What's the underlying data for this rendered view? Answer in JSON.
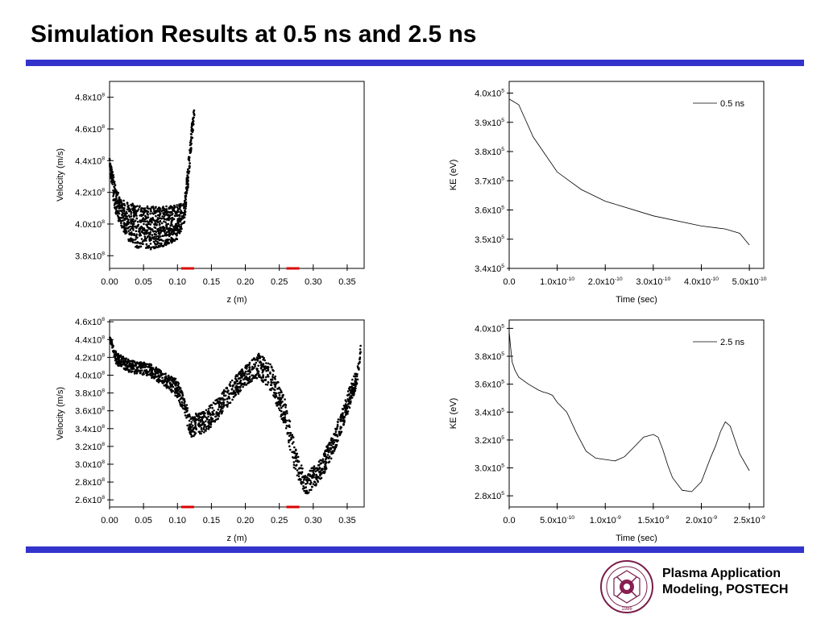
{
  "slide": {
    "title": "Simulation Results at 0.5 ns and 2.5 ns",
    "org_line1": "Plasma Application",
    "org_line2": "Modeling, POSTECH",
    "logo": {
      "icon": "university-seal-icon",
      "ring_text": "POHANG UNIVERSITY OF SCIENCE AND TECHNOLOGY",
      "year": "1986"
    },
    "accent_color": "#3333cc"
  },
  "chart_data": [
    {
      "id": "vel05",
      "type": "scatter",
      "xlabel": "z (m)",
      "ylabel": "Velocity (m/s)",
      "xlim": [
        0,
        0.375
      ],
      "ylim": [
        372000000.0,
        490000000.0
      ],
      "xticks": [
        0,
        0.05,
        0.1,
        0.15,
        0.2,
        0.25,
        0.3,
        0.35
      ],
      "xtick_labels": [
        "0.00",
        "0.05",
        "0.10",
        "0.15",
        "0.20",
        "0.25",
        "0.30",
        "0.35"
      ],
      "yticks": [
        380000000.0,
        400000000.0,
        420000000.0,
        440000000.0,
        460000000.0,
        480000000.0
      ],
      "ytick_labels": [
        [
          "3.8x10",
          "8"
        ],
        [
          "4.0x10",
          "8"
        ],
        [
          "4.2x10",
          "8"
        ],
        [
          "4.4x10",
          "8"
        ],
        [
          "4.6x10",
          "8"
        ],
        [
          "4.8x10",
          "8"
        ]
      ],
      "upper_envelope": [
        [
          0,
          445000000.0
        ],
        [
          0.005,
          432000000.0
        ],
        [
          0.01,
          422000000.0
        ],
        [
          0.02,
          415000000.0
        ],
        [
          0.04,
          412000000.0
        ],
        [
          0.06,
          411000000.0
        ],
        [
          0.08,
          411000000.0
        ],
        [
          0.1,
          412000000.0
        ],
        [
          0.11,
          414000000.0
        ],
        [
          0.115,
          435000000.0
        ],
        [
          0.12,
          460000000.0
        ],
        [
          0.125,
          475000000.0
        ]
      ],
      "lower_envelope": [
        [
          0,
          438000000.0
        ],
        [
          0.005,
          415000000.0
        ],
        [
          0.01,
          405000000.0
        ],
        [
          0.02,
          396000000.0
        ],
        [
          0.03,
          388000000.0
        ],
        [
          0.04,
          385000000.0
        ],
        [
          0.06,
          384000000.0
        ],
        [
          0.08,
          386000000.0
        ],
        [
          0.1,
          390000000.0
        ],
        [
          0.11,
          400000000.0
        ],
        [
          0.115,
          420000000.0
        ],
        [
          0.12,
          445000000.0
        ],
        [
          0.125,
          468000000.0
        ]
      ],
      "markers": [
        0.115,
        0.27
      ],
      "marker_color": "#dd0000"
    },
    {
      "id": "ke05",
      "type": "line",
      "series": [
        {
          "name": "0.5 ns",
          "x": [
            0,
            2e-11,
            5e-11,
            1e-10,
            1.5e-10,
            2e-10,
            3e-10,
            4e-10,
            4.5e-10,
            4.8e-10,
            5e-10
          ],
          "y": [
            398000.0,
            396000.0,
            385000.0,
            373000.0,
            367000.0,
            363000.0,
            358000.0,
            354500.0,
            353500.0,
            352000.0,
            348000.0
          ]
        }
      ],
      "xlabel": "Time (sec)",
      "ylabel": "KE (eV)",
      "xlim": [
        0,
        5.3e-10
      ],
      "ylim": [
        340000.0,
        404000.0
      ],
      "xticks": [
        0,
        1e-10,
        2e-10,
        3e-10,
        4e-10,
        5e-10
      ],
      "xtick_labels": [
        [
          "0.0",
          ""
        ],
        [
          "1.0x10",
          "-10"
        ],
        [
          "2.0x10",
          "-10"
        ],
        [
          "3.0x10",
          "-10"
        ],
        [
          "4.0x10",
          "-10"
        ],
        [
          "5.0x10",
          "-10"
        ]
      ],
      "yticks": [
        340000.0,
        350000.0,
        360000.0,
        370000.0,
        380000.0,
        390000.0,
        400000.0
      ],
      "ytick_labels": [
        [
          "3.4x10",
          "5"
        ],
        [
          "3.5x10",
          "5"
        ],
        [
          "3.6x10",
          "5"
        ],
        [
          "3.7x10",
          "5"
        ],
        [
          "3.8x10",
          "5"
        ],
        [
          "3.9x10",
          "5"
        ],
        [
          "4.0x10",
          "5"
        ]
      ],
      "legend": "top-right"
    },
    {
      "id": "vel25",
      "type": "scatter",
      "xlabel": "z (m)",
      "ylabel": "Velocity (m/s)",
      "xlim": [
        0,
        0.375
      ],
      "ylim": [
        252000000.0,
        462000000.0
      ],
      "xticks": [
        0,
        0.05,
        0.1,
        0.15,
        0.2,
        0.25,
        0.3,
        0.35
      ],
      "xtick_labels": [
        "0.00",
        "0.05",
        "0.10",
        "0.15",
        "0.20",
        "0.25",
        "0.30",
        "0.35"
      ],
      "yticks": [
        260000000.0,
        280000000.0,
        300000000.0,
        320000000.0,
        340000000.0,
        360000000.0,
        380000000.0,
        400000000.0,
        420000000.0,
        440000000.0,
        460000000.0
      ],
      "ytick_labels": [
        [
          "2.6x10",
          "8"
        ],
        [
          "2.8x10",
          "8"
        ],
        [
          "3.0x10",
          "8"
        ],
        [
          "3.2x10",
          "8"
        ],
        [
          "3.4x10",
          "8"
        ],
        [
          "3.6x10",
          "8"
        ],
        [
          "3.8x10",
          "8"
        ],
        [
          "4.0x10",
          "8"
        ],
        [
          "4.2x10",
          "8"
        ],
        [
          "4.4x10",
          "8"
        ],
        [
          "4.6x10",
          "8"
        ]
      ],
      "upper_envelope": [
        [
          0,
          446000000.0
        ],
        [
          0.01,
          425000000.0
        ],
        [
          0.03,
          417000000.0
        ],
        [
          0.06,
          413000000.0
        ],
        [
          0.08,
          403000000.0
        ],
        [
          0.1,
          395000000.0
        ],
        [
          0.11,
          375000000.0
        ],
        [
          0.12,
          355000000.0
        ],
        [
          0.14,
          360000000.0
        ],
        [
          0.16,
          375000000.0
        ],
        [
          0.18,
          395000000.0
        ],
        [
          0.2,
          410000000.0
        ],
        [
          0.22,
          425000000.0
        ],
        [
          0.24,
          410000000.0
        ],
        [
          0.26,
          370000000.0
        ],
        [
          0.275,
          315000000.0
        ],
        [
          0.29,
          290000000.0
        ],
        [
          0.31,
          305000000.0
        ],
        [
          0.33,
          335000000.0
        ],
        [
          0.35,
          380000000.0
        ],
        [
          0.365,
          410000000.0
        ],
        [
          0.37,
          435000000.0
        ]
      ],
      "lower_envelope": [
        [
          0,
          440000000.0
        ],
        [
          0.01,
          412000000.0
        ],
        [
          0.03,
          403000000.0
        ],
        [
          0.06,
          398000000.0
        ],
        [
          0.08,
          388000000.0
        ],
        [
          0.1,
          375000000.0
        ],
        [
          0.11,
          355000000.0
        ],
        [
          0.12,
          330000000.0
        ],
        [
          0.14,
          335000000.0
        ],
        [
          0.16,
          350000000.0
        ],
        [
          0.18,
          370000000.0
        ],
        [
          0.2,
          388000000.0
        ],
        [
          0.22,
          398000000.0
        ],
        [
          0.24,
          380000000.0
        ],
        [
          0.26,
          335000000.0
        ],
        [
          0.275,
          285000000.0
        ],
        [
          0.29,
          265000000.0
        ],
        [
          0.31,
          280000000.0
        ],
        [
          0.33,
          310000000.0
        ],
        [
          0.35,
          355000000.0
        ],
        [
          0.365,
          390000000.0
        ],
        [
          0.37,
          425000000.0
        ]
      ],
      "markers": [
        0.115,
        0.27
      ],
      "marker_color": "#dd0000"
    },
    {
      "id": "ke25",
      "type": "line",
      "series": [
        {
          "name": "2.5 ns",
          "x": [
            0,
            1e-11,
            3e-11,
            6e-11,
            1e-10,
            2e-10,
            3e-10,
            3.5e-10,
            4e-10,
            4.5e-10,
            5e-10,
            6e-10,
            7e-10,
            8e-10,
            9e-10,
            1e-09,
            1.1e-09,
            1.2e-09,
            1.3e-09,
            1.4e-09,
            1.5e-09,
            1.55e-09,
            1.6e-09,
            1.65e-09,
            1.7e-09,
            1.8e-09,
            1.9e-09,
            2e-09,
            2.1e-09,
            2.15e-09,
            2.2e-09,
            2.25e-09,
            2.3e-09,
            2.4e-09,
            2.5e-09
          ],
          "y": [
            398000.0,
            390000.0,
            376000.0,
            370000.0,
            365000.0,
            360000.0,
            356000.0,
            354500.0,
            353500.0,
            352000.0,
            347000.0,
            340000.0,
            325000.0,
            312000.0,
            307000.0,
            306000.0,
            305000.0,
            308000.0,
            315000.0,
            322000.0,
            324000.0,
            322000.0,
            313000.0,
            302000.0,
            293000.0,
            284000.0,
            283000.0,
            290000.0,
            308000.0,
            316000.0,
            326000.0,
            333000.0,
            330000.0,
            310000.0,
            298000.0
          ]
        }
      ],
      "xlabel": "Time (sec)",
      "ylabel": "KE (eV)",
      "xlim": [
        0,
        2.65e-09
      ],
      "ylim": [
        272000.0,
        406000.0
      ],
      "xticks": [
        0,
        5e-10,
        1e-09,
        1.5e-09,
        2e-09,
        2.5e-09
      ],
      "xtick_labels": [
        [
          "0.0",
          ""
        ],
        [
          "5.0x10",
          "-10"
        ],
        [
          "1.0x10",
          "-9"
        ],
        [
          "1.5x10",
          "-9"
        ],
        [
          "2.0x10",
          "-9"
        ],
        [
          "2.5x10",
          "-9"
        ]
      ],
      "yticks": [
        280000.0,
        300000.0,
        320000.0,
        340000.0,
        360000.0,
        380000.0,
        400000.0
      ],
      "ytick_labels": [
        [
          "2.8x10",
          "5"
        ],
        [
          "3.0x10",
          "5"
        ],
        [
          "3.2x10",
          "5"
        ],
        [
          "3.4x10",
          "5"
        ],
        [
          "3.6x10",
          "5"
        ],
        [
          "3.8x10",
          "5"
        ],
        [
          "4.0x10",
          "5"
        ]
      ],
      "legend": "top-right"
    }
  ]
}
